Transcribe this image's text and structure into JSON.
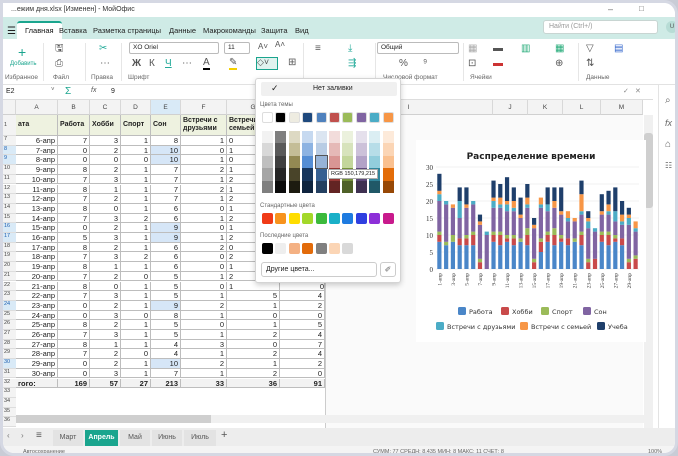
{
  "window": {
    "title": "...ежим дня.xlsx [Изменен] - МойОфис",
    "minimize": "–",
    "maximize": "□"
  },
  "menu": {
    "hamburger": "☰",
    "tabs": [
      "Главная",
      "Вставка",
      "Разметка страницы",
      "Данные",
      "Макрокоманды",
      "Защита",
      "Вид"
    ],
    "active": "Главная",
    "search_placeholder": "Найти (Ctrl+/)",
    "avatar": "U"
  },
  "ribbon": {
    "add_label": "Добавить",
    "font_name": "XO Oriel",
    "font_size": "11",
    "number_format": "Общий",
    "groups": [
      "Избранное",
      "Файл",
      "Правка",
      "Шрифт",
      "Числовой формат",
      "Ячейки",
      "Данные"
    ],
    "bold": "Ж",
    "italic": "К",
    "underline": "Ч"
  },
  "formula_bar": {
    "cell_ref": "E2",
    "value": "9",
    "sum": "Σ",
    "fx": "fx"
  },
  "columns": [
    "A",
    "B",
    "C",
    "D",
    "E",
    "F",
    "G",
    "H",
    "I",
    "J",
    "K",
    "L",
    "M"
  ],
  "selected_column": "E",
  "table": {
    "headers": {
      "num": "1",
      "cells": [
        "ата",
        "Работа",
        "Хобби",
        "Спорт",
        "Сон",
        "Встречи с друзьями",
        "Встречи с семьей",
        "Учеба"
      ]
    },
    "rows": [
      {
        "num": "7",
        "cells": [
          "6-апр",
          "7",
          "3",
          "1",
          "8",
          "1",
          "0",
          "0"
        ]
      },
      {
        "num": "8",
        "cells": [
          "7-апр",
          "0",
          "2",
          "1",
          "10",
          "0",
          "1",
          "2"
        ],
        "highlight": true
      },
      {
        "num": "9",
        "cells": [
          "8-апр",
          "0",
          "0",
          "0",
          "10",
          "1",
          "0",
          "0"
        ],
        "highlight": true
      },
      {
        "num": "10",
        "cells": [
          "9-апр",
          "8",
          "2",
          "1",
          "7",
          "2",
          "1",
          "5"
        ]
      },
      {
        "num": "11",
        "cells": [
          "10-апр",
          "7",
          "3",
          "1",
          "7",
          "1",
          "2",
          "4"
        ]
      },
      {
        "num": "12",
        "cells": [
          "11-апр",
          "8",
          "1",
          "1",
          "7",
          "2",
          "1",
          "7"
        ]
      },
      {
        "num": "13",
        "cells": [
          "12-апр",
          "7",
          "2",
          "1",
          "7",
          "1",
          "2",
          "4"
        ]
      },
      {
        "num": "14",
        "cells": [
          "13-апр",
          "8",
          "0",
          "1",
          "6",
          "0",
          "1",
          "5"
        ]
      },
      {
        "num": "15",
        "cells": [
          "14-апр",
          "7",
          "3",
          "2",
          "6",
          "1",
          "2",
          "4"
        ]
      },
      {
        "num": "16",
        "cells": [
          "15-апр",
          "0",
          "2",
          "1",
          "9",
          "0",
          "1",
          "2"
        ],
        "highlight": true
      },
      {
        "num": "17",
        "cells": [
          "16-апр",
          "5",
          "3",
          "1",
          "9",
          "1",
          "2",
          "0"
        ],
        "highlight": true
      },
      {
        "num": "18",
        "cells": [
          "17-апр",
          "8",
          "2",
          "1",
          "6",
          "2",
          "0",
          "5"
        ]
      },
      {
        "num": "19",
        "cells": [
          "18-апр",
          "7",
          "3",
          "2",
          "6",
          "0",
          "2",
          "4"
        ]
      },
      {
        "num": "20",
        "cells": [
          "19-апр",
          "8",
          "1",
          "1",
          "6",
          "0",
          "1",
          "7"
        ]
      },
      {
        "num": "21",
        "cells": [
          "20-апр",
          "7",
          "2",
          "0",
          "5",
          "1",
          "2",
          "0"
        ]
      },
      {
        "num": "22",
        "cells": [
          "21-апр",
          "8",
          "0",
          "1",
          "5",
          "0",
          "1",
          "0"
        ]
      },
      {
        "num": "23",
        "cells": [
          "22-апр",
          "7",
          "3",
          "1",
          "5",
          "1",
          "5",
          "4"
        ]
      },
      {
        "num": "24",
        "cells": [
          "23-апр",
          "0",
          "2",
          "1",
          "9",
          "2",
          "1",
          "2"
        ],
        "highlight": true
      },
      {
        "num": "25",
        "cells": [
          "24-апр",
          "0",
          "3",
          "0",
          "8",
          "1",
          "0",
          "0"
        ]
      },
      {
        "num": "26",
        "cells": [
          "25-апр",
          "8",
          "2",
          "1",
          "5",
          "0",
          "1",
          "5"
        ]
      },
      {
        "num": "27",
        "cells": [
          "26-апр",
          "7",
          "3",
          "1",
          "5",
          "1",
          "2",
          "4"
        ]
      },
      {
        "num": "28",
        "cells": [
          "27-апр",
          "8",
          "1",
          "1",
          "4",
          "3",
          "0",
          "7"
        ]
      },
      {
        "num": "29",
        "cells": [
          "28-апр",
          "7",
          "2",
          "0",
          "4",
          "1",
          "2",
          "4"
        ]
      },
      {
        "num": "30",
        "cells": [
          "29-апр",
          "0",
          "2",
          "1",
          "10",
          "2",
          "1",
          "2"
        ],
        "highlight": true
      },
      {
        "num": "31",
        "cells": [
          "30-апр",
          "0",
          "3",
          "1",
          "7",
          "1",
          "2",
          "0"
        ]
      }
    ],
    "total": {
      "num": "32",
      "cells": [
        "гого:",
        "169",
        "57",
        "27",
        "213",
        "33",
        "36",
        "91"
      ]
    },
    "empty_rows": [
      "33",
      "34",
      "35",
      "36"
    ]
  },
  "fill_popup": {
    "no_fill": "Нет заливки",
    "theme_label": "Цвета темы",
    "standard_label": "Стандартные цвета",
    "recent_label": "Последние цвета",
    "more_colors": "Другие цвета...",
    "tooltip": "RGB 150,179,215",
    "theme": [
      "#ffffff",
      "#000000",
      "#eeece1",
      "#1f497d",
      "#4f81bd",
      "#c0504d",
      "#9bbb59",
      "#8064a2",
      "#4bacc6",
      "#f79646"
    ],
    "shades": [
      [
        "#f2f2f2",
        "#7f7f7f",
        "#ddd9c3",
        "#c6d9f0",
        "#dbe5f1",
        "#f2dcdb",
        "#ebf1dd",
        "#e5e0ec",
        "#dbeef3",
        "#fdeada"
      ],
      [
        "#d8d8d8",
        "#595959",
        "#c4bd97",
        "#8db3e2",
        "#b8cce4",
        "#e5b9b7",
        "#d7e3bc",
        "#ccc1d9",
        "#b7dde8",
        "#fbd5b5"
      ],
      [
        "#bfbfbf",
        "#3f3f3f",
        "#938953",
        "#548dd4",
        "#96b3d7",
        "#d99694",
        "#c3d69b",
        "#b2a2c7",
        "#92cddc",
        "#fac08f"
      ],
      [
        "#a5a5a5",
        "#262626",
        "#494429",
        "#17365d",
        "#366092",
        "#953734",
        "#76923c",
        "#5f497a",
        "#31859b",
        "#e36c09"
      ],
      [
        "#7f7f7f",
        "#0c0c0c",
        "#1d1b10",
        "#0f243e",
        "#244061",
        "#632423",
        "#4f6128",
        "#3f3151",
        "#205867",
        "#974806"
      ]
    ],
    "standard": [
      "#f03a17",
      "#f7931e",
      "#ffdd00",
      "#a3d82a",
      "#3cba3c",
      "#1ab0c8",
      "#1e7be0",
      "#2f3fe0",
      "#8d2fd8",
      "#c81a8c"
    ],
    "recent": [
      "#000000",
      "#eeeeee",
      "#f4b183",
      "#e26b0a",
      "#808080",
      "#fbd5b5",
      "#d9d9d9"
    ]
  },
  "sheets": {
    "tabs": [
      "Март",
      "Апрель",
      "Май",
      "Июнь",
      "Июль"
    ],
    "active": "Апрель",
    "add": "+"
  },
  "status": {
    "left": "Автосохранение",
    "right": "СУММ: 77  СРЕДН: 8,435  МИН: 8  МАКС: 11  СЧЕТ: 8",
    "zoom": "100%"
  },
  "chart_data": {
    "type": "bar",
    "stacked": true,
    "title": "Распределение времени",
    "ylim": [
      0,
      30
    ],
    "yticks": [
      0,
      5,
      10,
      15,
      20,
      25,
      30
    ],
    "grid": true,
    "legend": "bottom",
    "categories": [
      "1-апр",
      "2-апр",
      "3-апр",
      "4-апр",
      "5-апр",
      "6-апр",
      "7-апр",
      "8-апр",
      "9-апр",
      "10-апр",
      "11-апр",
      "12-апр",
      "13-апр",
      "14-апр",
      "15-апр",
      "16-апр",
      "17-апр",
      "18-апр",
      "19-апр",
      "20-апр",
      "21-апр",
      "22-апр",
      "23-апр",
      "24-апр",
      "25-апр",
      "26-апр",
      "27-апр",
      "28-апр",
      "29-апр",
      "30-апр"
    ],
    "xtick_labels": [
      "1-апр",
      "3-апр",
      "5-апр",
      "7-апр",
      "9-апр",
      "11-апр",
      "13-апр",
      "15-апр",
      "17-апр",
      "19-апр",
      "21-апр",
      "23-апр",
      "25-апр",
      "27-апр",
      "29-апр"
    ],
    "series": [
      {
        "name": "Работа",
        "color": "#4a86c8",
        "values": [
          8,
          7,
          8,
          7,
          7,
          7,
          0,
          0,
          8,
          7,
          8,
          7,
          8,
          7,
          0,
          5,
          8,
          7,
          8,
          7,
          8,
          7,
          0,
          0,
          8,
          7,
          8,
          7,
          0,
          0
        ]
      },
      {
        "name": "Хобби",
        "color": "#c94a4a",
        "values": [
          2,
          0,
          0,
          2,
          2,
          3,
          2,
          0,
          2,
          3,
          1,
          2,
          0,
          3,
          2,
          3,
          2,
          3,
          1,
          2,
          0,
          3,
          2,
          3,
          2,
          3,
          1,
          2,
          2,
          3
        ]
      },
      {
        "name": "Спорт",
        "color": "#9bbb59",
        "values": [
          1,
          1,
          2,
          0,
          1,
          1,
          1,
          0,
          1,
          1,
          1,
          1,
          1,
          2,
          1,
          1,
          1,
          2,
          1,
          0,
          1,
          1,
          1,
          0,
          1,
          1,
          1,
          0,
          1,
          1
        ]
      },
      {
        "name": "Сон",
        "color": "#8064a2",
        "values": [
          9,
          11,
          8,
          6,
          8,
          8,
          10,
          10,
          7,
          7,
          7,
          7,
          6,
          6,
          9,
          9,
          6,
          6,
          6,
          5,
          5,
          5,
          9,
          8,
          5,
          5,
          4,
          4,
          10,
          7
        ]
      },
      {
        "name": "Встречи с друзьями",
        "color": "#4bacc6",
        "values": [
          2,
          1,
          0,
          5,
          0,
          1,
          0,
          1,
          2,
          1,
          2,
          1,
          0,
          1,
          0,
          1,
          2,
          0,
          0,
          1,
          0,
          1,
          2,
          1,
          0,
          1,
          3,
          1,
          2,
          1
        ]
      },
      {
        "name": "Встречи с семьей",
        "color": "#f79646",
        "values": [
          1,
          0,
          1,
          0,
          1,
          0,
          1,
          0,
          1,
          2,
          1,
          2,
          1,
          2,
          1,
          2,
          0,
          2,
          1,
          2,
          1,
          5,
          1,
          0,
          1,
          2,
          0,
          2,
          1,
          2
        ]
      },
      {
        "name": "Учеба",
        "color": "#1f3f6b",
        "values": [
          5,
          0,
          0,
          4,
          5,
          0,
          2,
          0,
          5,
          4,
          7,
          4,
          5,
          4,
          2,
          0,
          5,
          4,
          7,
          0,
          0,
          4,
          2,
          0,
          5,
          4,
          7,
          4,
          2,
          0
        ]
      }
    ]
  }
}
